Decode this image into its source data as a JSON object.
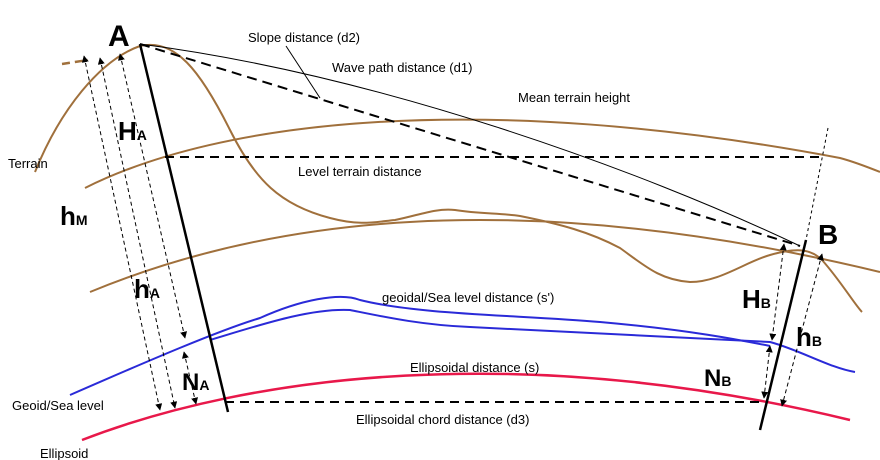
{
  "colors": {
    "terrain": "#a0703c",
    "geoid": "#2a2ad8",
    "ellipsoid": "#e8184a",
    "line": "#000000"
  },
  "points": {
    "a": "A",
    "b": "B"
  },
  "labels": {
    "slope": "Slope distance (d2)",
    "wave": "Wave path distance (d1)",
    "mean_terrain": "Mean terrain height",
    "terrain": "Terrain",
    "level_terrain": "Level terrain distance",
    "geoidal": "geoidal/Sea level distance (s')",
    "ellipsoidal": "Ellipsoidal distance (s)",
    "chord": "Ellipsoidal chord distance (d3)",
    "geoid": "Geoid/Sea level",
    "ellipsoid": "Ellipsoid"
  },
  "heights": {
    "ha_big": {
      "main": "H",
      "sub": "A"
    },
    "hm": {
      "main": "h",
      "sub": "M"
    },
    "ha_small": {
      "main": "h",
      "sub": "A"
    },
    "na": {
      "main": "N",
      "sub": "A"
    },
    "hb_big": {
      "main": "H",
      "sub": "B"
    },
    "nb": {
      "main": "N",
      "sub": "B"
    },
    "hb_small": {
      "main": "h",
      "sub": "B"
    }
  }
}
